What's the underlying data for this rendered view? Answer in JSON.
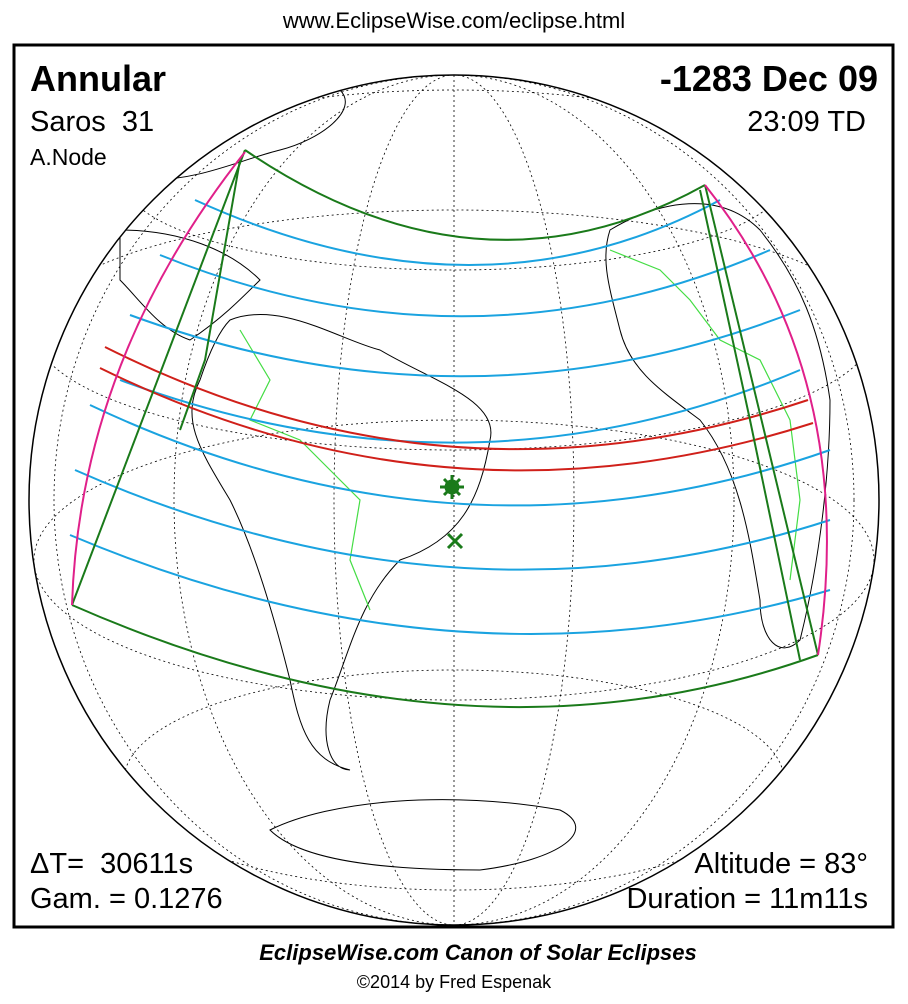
{
  "header": {
    "url": "www.EclipseWise.com/eclipse.html"
  },
  "info": {
    "eclipse_type": "Annular",
    "date": "-1283 Dec 09",
    "saros": "Saros  31",
    "time": "23:09 TD",
    "node": "A.Node"
  },
  "stats": {
    "delta_t": "ΔT=  30611s",
    "gamma": "Gam. = 0.1276",
    "altitude": "Altitude = 83°",
    "duration": "Duration = 11m11s"
  },
  "footer": {
    "title": "EclipseWise.com Canon of Solar Eclipses",
    "credit": "©2014 by Fred Espenak"
  }
}
